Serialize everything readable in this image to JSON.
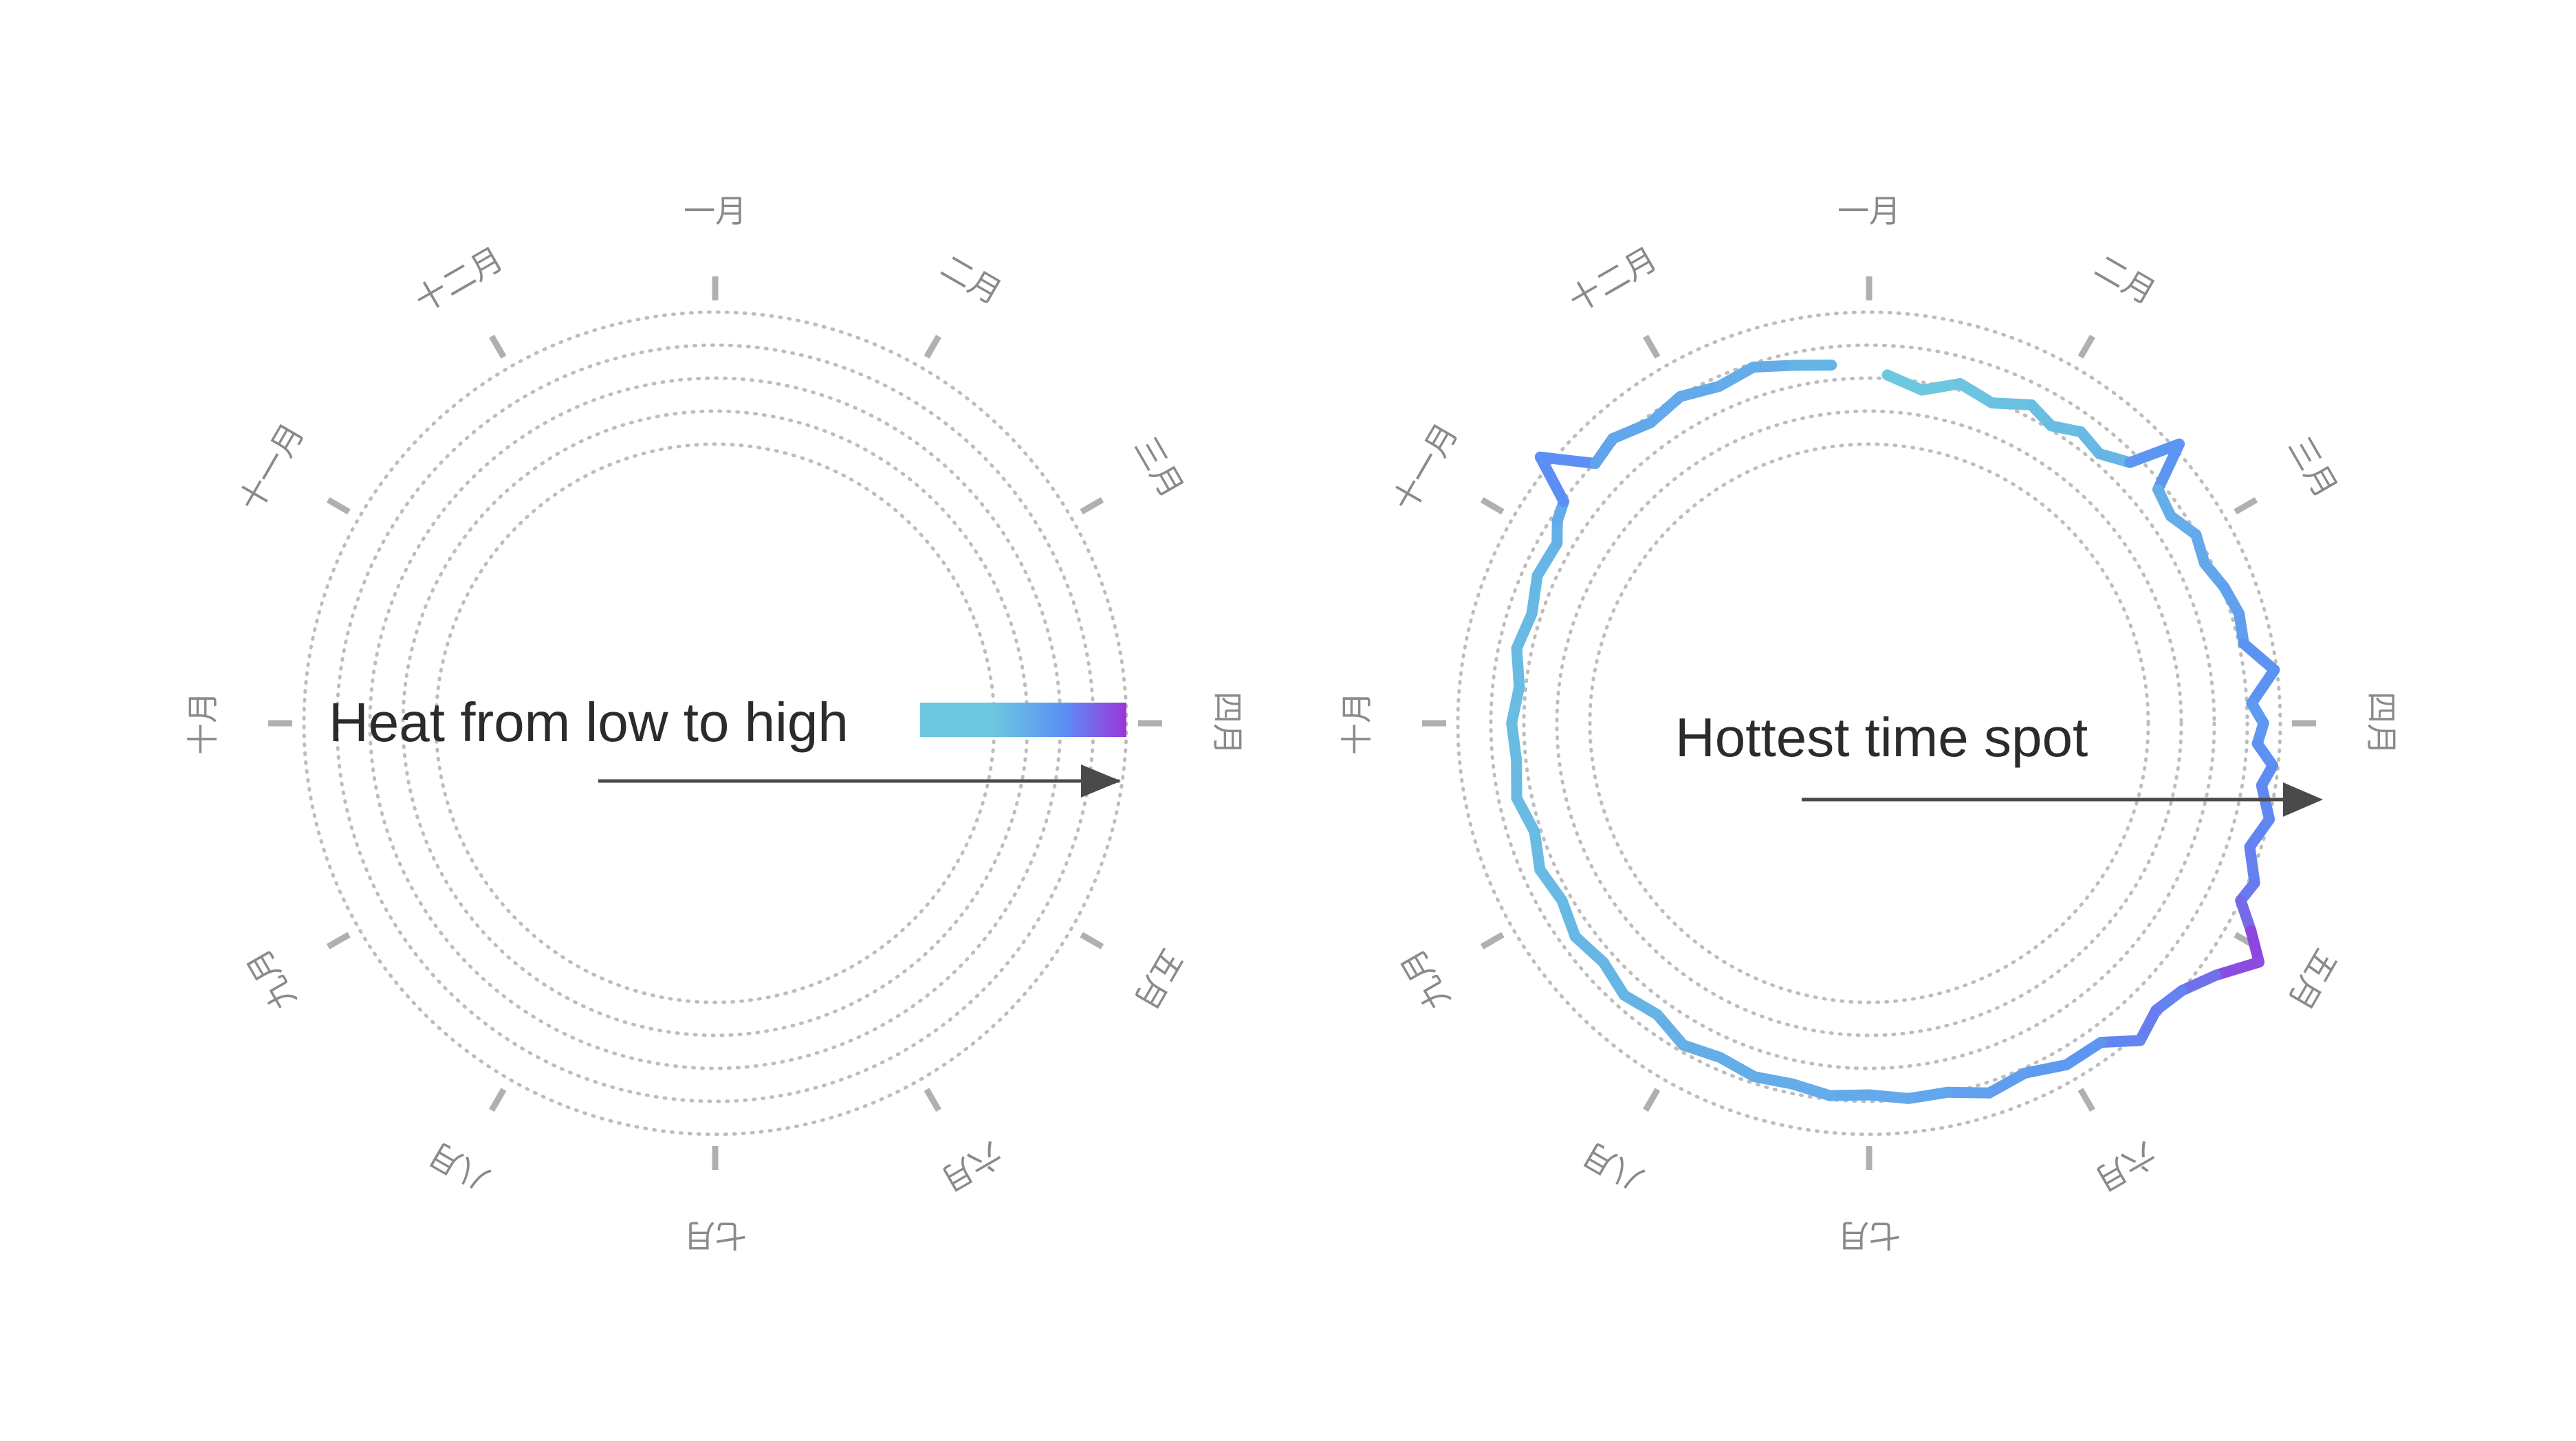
{
  "colors": {
    "low": "#6cc8de",
    "mid": "#5b8ff5",
    "high": "#9b35d8",
    "ring": "#bdbdbd",
    "tick": "#b0b0b0",
    "label": "#8a8a8a",
    "arrow": "#4a4a4a",
    "text": "#2b2b2b"
  },
  "legend": {
    "text": "Heat from low to high",
    "arrow_icon": "arrow-right-icon"
  },
  "annotation": {
    "text": "Hottest time spot",
    "arrow_icon": "arrow-right-icon"
  },
  "chart_data": [
    {
      "type": "line",
      "coordinate_system": "polar",
      "direction": "clockwise",
      "start": "top",
      "title": "",
      "months": [
        "一月",
        "二月",
        "三月",
        "四月",
        "五月",
        "六月",
        "七月",
        "八月",
        "九月",
        "十月",
        "十一月",
        "十二月"
      ],
      "rings": 5,
      "series": []
    },
    {
      "type": "line",
      "coordinate_system": "polar",
      "direction": "clockwise",
      "start": "top",
      "title": "",
      "months": [
        "一月",
        "二月",
        "三月",
        "四月",
        "五月",
        "六月",
        "七月",
        "八月",
        "九月",
        "十月",
        "十一月",
        "十二月"
      ],
      "rings": 5,
      "rlim": [
        0,
        1
      ],
      "series": [
        {
          "color_scale": [
            "#6cc8de",
            "#5b8ff5",
            "#9b35d8"
          ],
          "month_pos": [
            0.1,
            0.3,
            0.5,
            0.7,
            0.9,
            1.05,
            1.2,
            1.35,
            1.5,
            1.6,
            1.7,
            1.85,
            2.0,
            2.15,
            2.3,
            2.45,
            2.6,
            2.75,
            2.9,
            3.0,
            3.1,
            3.2,
            3.3,
            3.45,
            3.6,
            3.75,
            3.85,
            3.95,
            4.05,
            4.2,
            4.35,
            4.5,
            4.65,
            4.8,
            5.0,
            5.2,
            5.4,
            5.6,
            5.8,
            6.0,
            6.2,
            6.4,
            6.6,
            6.8,
            7.0,
            7.2,
            7.4,
            7.6,
            7.8,
            8.0,
            8.2,
            8.4,
            8.6,
            8.8,
            9.0,
            9.2,
            9.4,
            9.6,
            9.8,
            10.0,
            10.1,
            10.2,
            10.3,
            10.45,
            10.6,
            10.8,
            11.0,
            11.2,
            11.4,
            11.6,
            11.8
          ],
          "values": [
            0.62,
            0.58,
            0.63,
            0.6,
            0.65,
            0.62,
            0.66,
            0.64,
            0.69,
            0.86,
            0.7,
            0.68,
            0.72,
            0.7,
            0.73,
            0.75,
            0.74,
            0.83,
            0.74,
            0.78,
            0.76,
            0.82,
            0.79,
            0.84,
            0.8,
            0.86,
            0.84,
            0.92,
            1.0,
            0.9,
            0.84,
            0.82,
            0.86,
            0.78,
            0.78,
            0.74,
            0.76,
            0.72,
            0.72,
            0.7,
            0.71,
            0.69,
            0.7,
            0.68,
            0.7,
            0.66,
            0.68,
            0.65,
            0.67,
            0.64,
            0.66,
            0.63,
            0.66,
            0.64,
            0.65,
            0.63,
            0.66,
            0.64,
            0.67,
            0.66,
            0.7,
            0.72,
            0.88,
            0.72,
            0.74,
            0.7,
            0.72,
            0.69,
            0.71,
            0.68,
            0.66
          ]
        }
      ]
    }
  ]
}
